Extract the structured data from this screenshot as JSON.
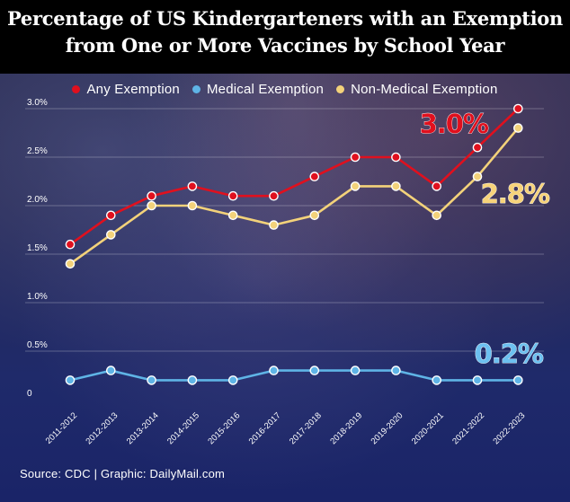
{
  "chart_data": {
    "type": "line",
    "title": "Percentage of US Kindergarteners with an Exemption from One or More Vaccines by School Year",
    "xlabel": "",
    "ylabel": "",
    "categories": [
      "2011-2012",
      "2012-2013",
      "2013-2014",
      "2014-2015",
      "2015-2016",
      "2016-2017",
      "2017-2018",
      "2018-2019",
      "2019-2020",
      "2020-2021",
      "2021-2022",
      "2022-2023"
    ],
    "y_ticks": [
      {
        "value": 0,
        "label": "0"
      },
      {
        "value": 0.5,
        "label": "0.5%"
      },
      {
        "value": 1.0,
        "label": "1.0%"
      },
      {
        "value": 1.5,
        "label": "1.5%"
      },
      {
        "value": 2.0,
        "label": "2.0%"
      },
      {
        "value": 2.5,
        "label": "2.5%"
      },
      {
        "value": 3.0,
        "label": "3.0%"
      }
    ],
    "ylim": [
      0,
      3.0
    ],
    "grid": true,
    "legend_position": "top",
    "series": [
      {
        "name": "Any Exemption",
        "color": "#e0101e",
        "values": [
          1.6,
          1.9,
          2.1,
          2.2,
          2.1,
          2.1,
          2.3,
          2.5,
          2.5,
          2.2,
          2.6,
          3.0
        ],
        "end_label": "3.0%",
        "end_label_color": "#e0101e"
      },
      {
        "name": "Medical Exemption",
        "color": "#5fb4e6",
        "values": [
          0.2,
          0.3,
          0.2,
          0.2,
          0.2,
          0.3,
          0.3,
          0.3,
          0.3,
          0.2,
          0.2,
          0.2
        ],
        "end_label": "0.2%",
        "end_label_color": "#6cc0f0"
      },
      {
        "name": "Non-Medical Exemption",
        "color": "#f3d27a",
        "values": [
          1.4,
          1.7,
          2.0,
          2.0,
          1.9,
          1.8,
          1.9,
          2.2,
          2.2,
          1.9,
          2.3,
          2.8
        ],
        "end_label": "2.8%",
        "end_label_color": "#f7d37a"
      }
    ]
  },
  "source_text": "Source: CDC  |  Graphic: DailyMail.com"
}
